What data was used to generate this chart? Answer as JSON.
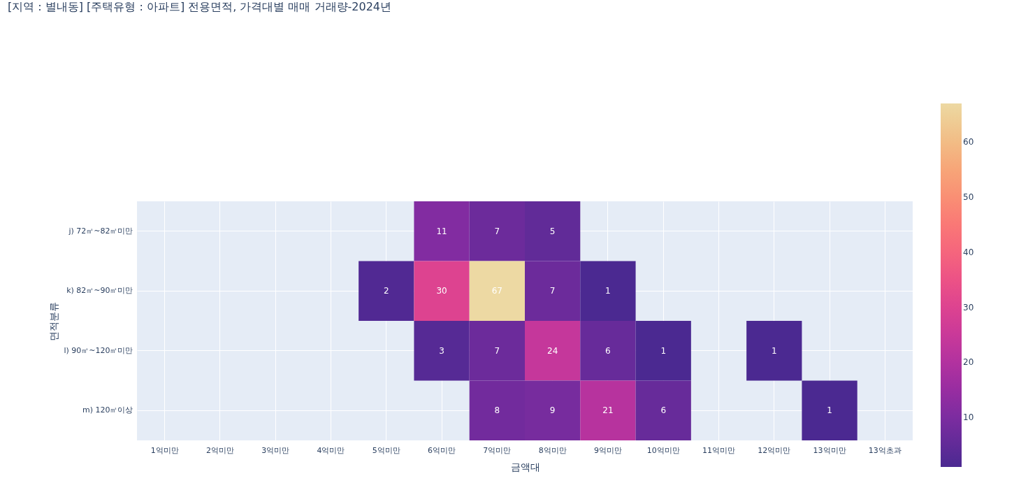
{
  "chart_data": {
    "type": "heatmap",
    "title": "[지역 : 별내동] [주택유형 : 아파트] 전용면적, 가격대별 매매 거래량-2024년",
    "xlabel": "금액대",
    "ylabel": "면적분류",
    "categories": [
      "1억미만",
      "2억미만",
      "3억미만",
      "4억미만",
      "5억미만",
      "6억미만",
      "7억미만",
      "8억미만",
      "9억미만",
      "10억미만",
      "11억미만",
      "12억미만",
      "13억미만",
      "13억초과"
    ],
    "y_categories": [
      "j) 72㎡~82㎡미만",
      "k) 82㎡~90㎡미만",
      "l) 90㎡~120㎡미만",
      "m) 120㎡이상"
    ],
    "cells": [
      [
        null,
        null,
        null,
        null,
        null,
        11,
        7,
        5,
        null,
        null,
        null,
        null,
        null,
        null
      ],
      [
        null,
        null,
        null,
        null,
        2,
        30,
        67,
        7,
        1,
        null,
        null,
        null,
        null,
        null
      ],
      [
        null,
        null,
        null,
        null,
        null,
        3,
        7,
        24,
        6,
        1,
        null,
        1,
        null,
        null
      ],
      [
        null,
        null,
        null,
        null,
        null,
        null,
        8,
        9,
        21,
        6,
        null,
        null,
        1,
        null
      ]
    ],
    "clim": [
      1,
      67
    ],
    "cticks": [
      10,
      20,
      30,
      40,
      50,
      60
    ],
    "colors": [
      "#4b2991",
      "#872ca2",
      "#c0369d",
      "#ea4f88",
      "#fa7876",
      "#f6a97a",
      "#edd9a3"
    ],
    "data_labels": true,
    "grid": true
  }
}
